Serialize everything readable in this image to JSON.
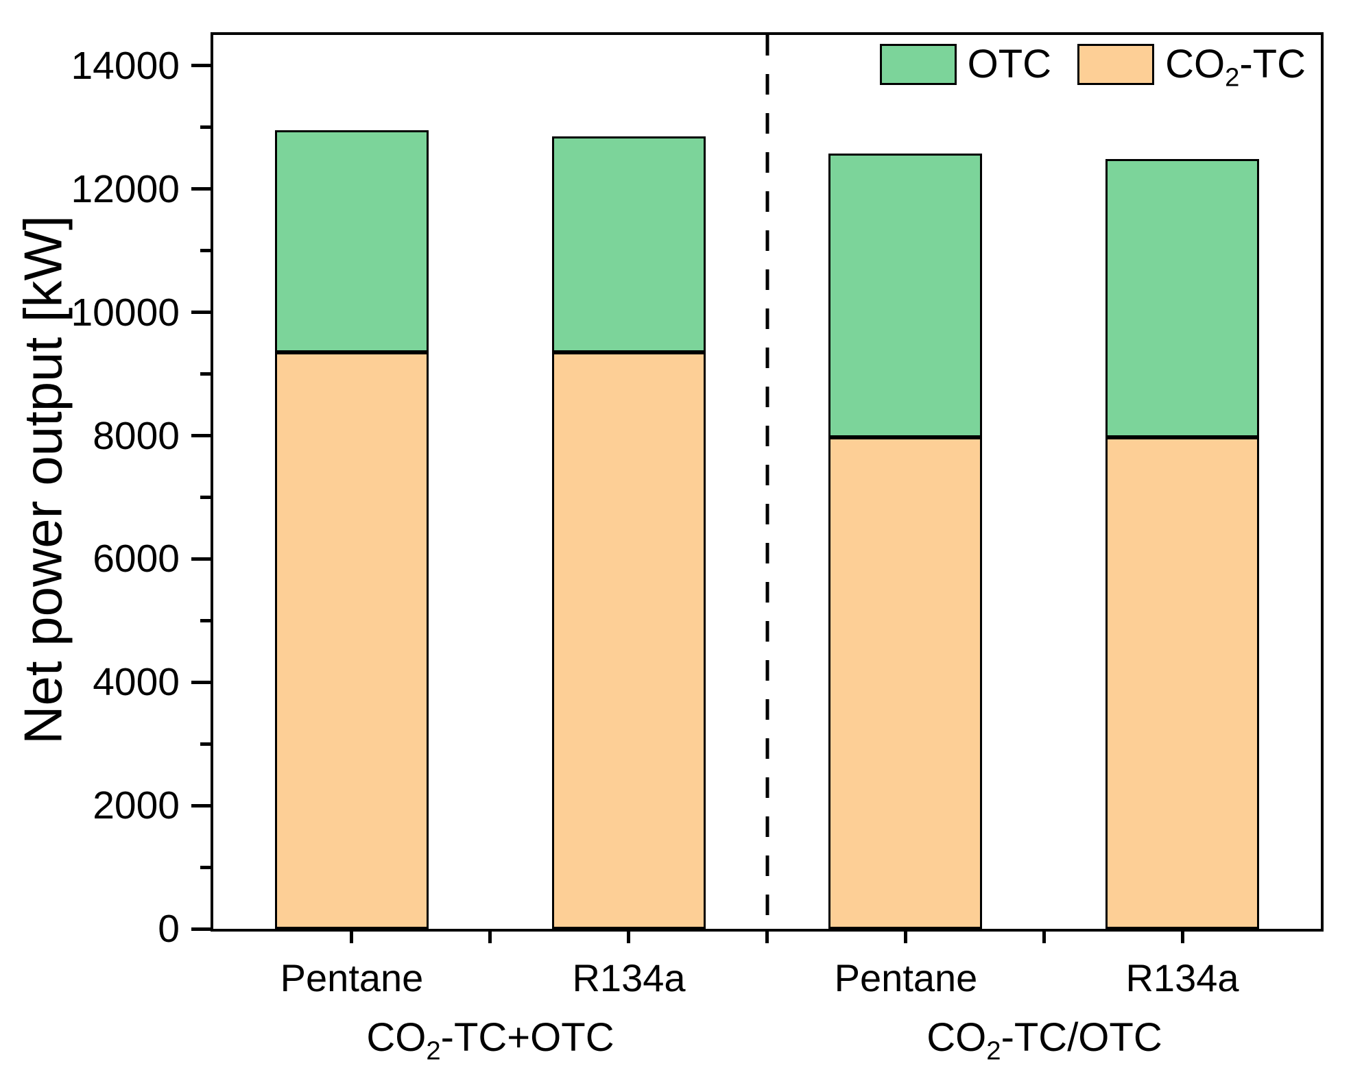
{
  "figure": {
    "background": "#ffffff",
    "axis_color": "#000000"
  },
  "legend": {
    "position": "top-right",
    "items": [
      {
        "label": "OTC",
        "series": "OTC",
        "color": "#7CD49A"
      },
      {
        "label_prefix": "CO",
        "label_sub": "2",
        "label_suffix": "-TC",
        "series": "CO2-TC",
        "color": "#FDCF96"
      }
    ]
  },
  "chart_data": {
    "type": "bar",
    "stacked": true,
    "title": "",
    "xlabel": "",
    "ylabel": "Net power output [kW]",
    "ylim": [
      0,
      14500
    ],
    "y_major_ticks": [
      0,
      2000,
      4000,
      6000,
      8000,
      10000,
      12000,
      14000
    ],
    "y_minor_tick_step": 1000,
    "grid": false,
    "legend_position": "top-right",
    "divider": "vertical dashed line separating the two configuration groups",
    "categories": [
      "Pentane",
      "R134a",
      "Pentane",
      "R134a"
    ],
    "groups": [
      {
        "label_prefix": "CO",
        "label_sub": "2",
        "label_suffix": "-TC+OTC",
        "categories": [
          "Pentane",
          "R134a"
        ]
      },
      {
        "label_prefix": "CO",
        "label_sub": "2",
        "label_suffix": "-TC/OTC",
        "categories": [
          "Pentane",
          "R134a"
        ]
      }
    ],
    "series": [
      {
        "name": "CO2-TC",
        "color": "#FDCF96",
        "values": [
          9350,
          9350,
          7970,
          7970
        ]
      },
      {
        "name": "OTC",
        "color": "#7CD49A",
        "values": [
          3600,
          3500,
          4600,
          4510
        ]
      }
    ],
    "bar_totals": [
      12950,
      12850,
      12570,
      12480
    ]
  }
}
